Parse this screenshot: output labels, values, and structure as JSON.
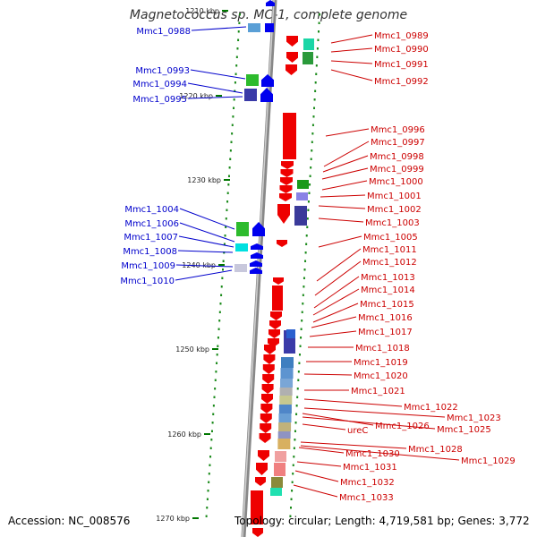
{
  "title": "Magnetococcus sp. MC-1, complete genome",
  "accession": "Accession: NC_008576",
  "topology": "Topology: circular; Length: 4,719,581 bp; Genes: 3,772",
  "scale_labels": [
    "1210 kbp",
    "1220 kbp",
    "1230 kbp",
    "1240 kbp",
    "1250 kbp",
    "1260 kbp",
    "1270 kbp"
  ],
  "left_labels": [
    "Mmc1_0988",
    "Mmc1_0993",
    "Mmc1_0994",
    "Mmc1_0995",
    "Mmc1_1004",
    "Mmc1_1006",
    "Mmc1_1007",
    "Mmc1_1008",
    "Mmc1_1009",
    "Mmc1_1010"
  ],
  "right_labels": [
    "Mmc1_0989",
    "Mmc1_0990",
    "Mmc1_0991",
    "Mmc1_0992",
    "Mmc1_0996",
    "Mmc1_0997",
    "Mmc1_0998",
    "Mmc1_0999",
    "Mmc1_1000",
    "Mmc1_1001",
    "Mmc1_1002",
    "Mmc1_1003",
    "Mmc1_1005",
    "Mmc1_1011",
    "Mmc1_1012",
    "Mmc1_1013",
    "Mmc1_1014",
    "Mmc1_1015",
    "Mmc1_1016",
    "Mmc1_1017",
    "Mmc1_1018",
    "Mmc1_1019",
    "Mmc1_1020",
    "Mmc1_1021",
    "Mmc1_1022",
    "Mmc1_1023",
    "Mmc1_1026",
    "Mmc1_1025",
    "ureC",
    "Mmc1_1028",
    "Mmc1_1029",
    "Mmc1_1030",
    "Mmc1_1031",
    "Mmc1_1032",
    "Mmc1_1033"
  ],
  "colors": {
    "reverse_strand": "#0000ee",
    "forward_strand": "#ee0000",
    "backbone": "#999999",
    "scale": "#007700"
  }
}
